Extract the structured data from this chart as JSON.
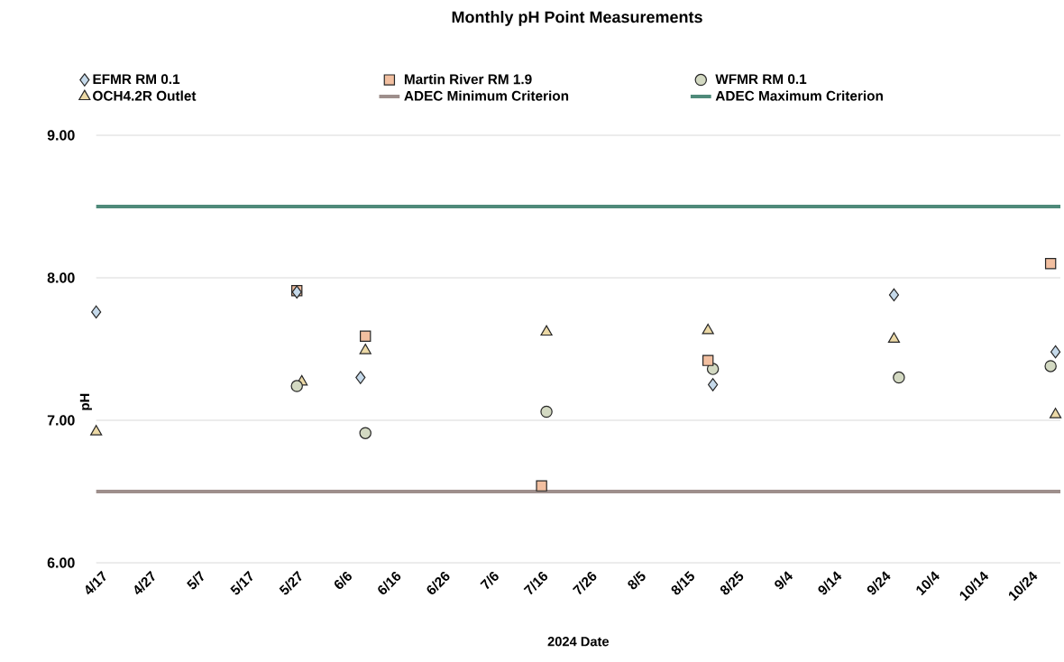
{
  "chart_data": {
    "type": "scatter",
    "title": "Monthly pH Point Measurements",
    "xlabel": "2024 Date",
    "ylabel": "pH",
    "xlim": [
      "2024-04-17",
      "2024-10-31"
    ],
    "xticks": [
      {
        "value": "2024-04-17",
        "label": "4/17"
      },
      {
        "value": "2024-04-27",
        "label": "4/27"
      },
      {
        "value": "2024-05-07",
        "label": "5/7"
      },
      {
        "value": "2024-05-17",
        "label": "5/17"
      },
      {
        "value": "2024-05-27",
        "label": "5/27"
      },
      {
        "value": "2024-06-06",
        "label": "6/6"
      },
      {
        "value": "2024-06-16",
        "label": "6/16"
      },
      {
        "value": "2024-06-26",
        "label": "6/26"
      },
      {
        "value": "2024-07-06",
        "label": "7/6"
      },
      {
        "value": "2024-07-16",
        "label": "7/16"
      },
      {
        "value": "2024-07-26",
        "label": "7/26"
      },
      {
        "value": "2024-08-05",
        "label": "8/5"
      },
      {
        "value": "2024-08-15",
        "label": "8/15"
      },
      {
        "value": "2024-08-25",
        "label": "8/25"
      },
      {
        "value": "2024-09-04",
        "label": "9/4"
      },
      {
        "value": "2024-09-14",
        "label": "9/14"
      },
      {
        "value": "2024-09-24",
        "label": "9/24"
      },
      {
        "value": "2024-10-04",
        "label": "10/4"
      },
      {
        "value": "2024-10-14",
        "label": "10/14"
      },
      {
        "value": "2024-10-24",
        "label": "10/24"
      }
    ],
    "ylim": [
      6,
      9
    ],
    "yticks": [
      {
        "value": 6,
        "label": "6.00"
      },
      {
        "value": 7,
        "label": "7.00"
      },
      {
        "value": 8,
        "label": "8.00"
      },
      {
        "value": 9,
        "label": "9.00"
      }
    ],
    "grid": "y",
    "legend": "top",
    "series": [
      {
        "name": "EFMR RM 0.1",
        "color": "#c5d9ea",
        "marker": "diamond",
        "x": [
          "2024-04-17",
          "2024-05-28",
          "2024-06-10",
          "2024-08-21",
          "2024-09-27",
          "2024-10-30"
        ],
        "values": [
          7.76,
          7.9,
          7.3,
          7.25,
          7.88,
          7.48
        ]
      },
      {
        "name": "Martin River RM 1.9",
        "color": "#f2bfa0",
        "marker": "square",
        "x": [
          "2024-05-28",
          "2024-06-11",
          "2024-07-17",
          "2024-08-20",
          "2024-10-29"
        ],
        "values": [
          7.91,
          7.59,
          6.54,
          7.42,
          8.1
        ]
      },
      {
        "name": "WFMR RM 0.1",
        "color": "#d3d9c2",
        "marker": "circle",
        "x": [
          "2024-05-28",
          "2024-06-11",
          "2024-07-18",
          "2024-08-21",
          "2024-09-28",
          "2024-10-29"
        ],
        "values": [
          7.24,
          6.91,
          7.06,
          7.36,
          7.3,
          7.38
        ]
      },
      {
        "name": "OCH4.2R Outlet",
        "color": "#ecd9a6",
        "marker": "triangle",
        "x": [
          "2024-04-17",
          "2024-05-29",
          "2024-06-11",
          "2024-07-18",
          "2024-08-20",
          "2024-09-27",
          "2024-10-30"
        ],
        "values": [
          6.92,
          7.27,
          7.49,
          7.62,
          7.63,
          7.57,
          7.04
        ]
      }
    ],
    "ref_lines": [
      {
        "axis": "y",
        "value": 6.5,
        "label": "ADEC Minimum Criterion",
        "color": "#9e8f8c"
      },
      {
        "axis": "y",
        "value": 8.5,
        "label": "ADEC Maximum Criterion",
        "color": "#4f8a7a"
      }
    ]
  }
}
